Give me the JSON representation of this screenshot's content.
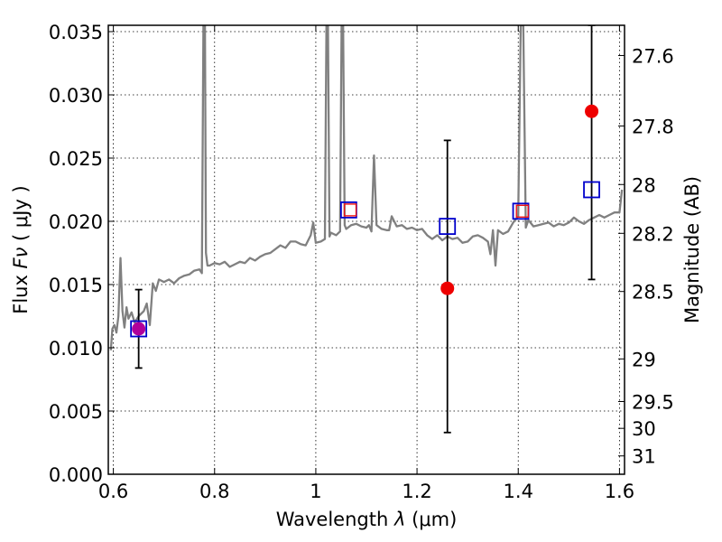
{
  "chart_data": {
    "type": "scatter",
    "x_axis": {
      "label_prefix": "Wavelength  ",
      "label_symbol": "λ",
      "label_suffix": " (μm)",
      "range": [
        0.59,
        1.61
      ],
      "ticks": [
        0.6,
        0.8,
        1.0,
        1.2,
        1.4,
        1.6
      ],
      "tick_labels": [
        "0.6",
        "0.8",
        "1",
        "1.2",
        "1.4",
        "1.6"
      ]
    },
    "y_axis_left": {
      "label_prefix": "Flux  ",
      "label_symbol": "Fν",
      "label_suffix": "  ( μJy )",
      "range": [
        0.0,
        0.0355
      ],
      "ticks": [
        0.0,
        0.005,
        0.01,
        0.015,
        0.02,
        0.025,
        0.03,
        0.035
      ],
      "tick_labels": [
        "0.000",
        "0.005",
        "0.010",
        "0.015",
        "0.020",
        "0.025",
        "0.030",
        "0.035"
      ]
    },
    "y_axis_right": {
      "label": "Magnitude (AB)",
      "tick_labels": [
        "27.6",
        "27.8",
        "28",
        "28.2",
        "28.5",
        "29",
        "29.5",
        "30",
        "31"
      ],
      "tick_flux_values": [
        0.03311,
        0.02754,
        0.02291,
        0.01905,
        0.01445,
        0.00912,
        0.00575,
        0.00363,
        0.00145
      ]
    },
    "grid": true,
    "series": [
      {
        "kind": "spectrum_line",
        "color": "#808080",
        "x": [
          0.595,
          0.598,
          0.602,
          0.606,
          0.61,
          0.614,
          0.618,
          0.622,
          0.626,
          0.63,
          0.636,
          0.642,
          0.65,
          0.66,
          0.666,
          0.672,
          0.678,
          0.684,
          0.69,
          0.7,
          0.71,
          0.72,
          0.73,
          0.74,
          0.75,
          0.76,
          0.77,
          0.775,
          0.778,
          0.781,
          0.783,
          0.786,
          0.79,
          0.8,
          0.81,
          0.82,
          0.83,
          0.84,
          0.85,
          0.86,
          0.87,
          0.88,
          0.89,
          0.9,
          0.91,
          0.92,
          0.93,
          0.94,
          0.95,
          0.96,
          0.97,
          0.98,
          0.99,
          0.995,
          1.0,
          1.01,
          1.018,
          1.021,
          1.024,
          1.027,
          1.03,
          1.04,
          1.048,
          1.051,
          1.054,
          1.057,
          1.06,
          1.07,
          1.08,
          1.09,
          1.1,
          1.105,
          1.11,
          1.115,
          1.12,
          1.13,
          1.14,
          1.145,
          1.15,
          1.16,
          1.17,
          1.18,
          1.19,
          1.2,
          1.21,
          1.22,
          1.23,
          1.24,
          1.25,
          1.26,
          1.27,
          1.28,
          1.29,
          1.3,
          1.31,
          1.32,
          1.33,
          1.34,
          1.345,
          1.35,
          1.355,
          1.36,
          1.37,
          1.38,
          1.39,
          1.4,
          1.405,
          1.41,
          1.415,
          1.42,
          1.43,
          1.44,
          1.45,
          1.46,
          1.47,
          1.48,
          1.49,
          1.5,
          1.51,
          1.52,
          1.53,
          1.54,
          1.55,
          1.56,
          1.57,
          1.58,
          1.59,
          1.6,
          1.605
        ],
        "y": [
          0.0098,
          0.0115,
          0.0118,
          0.0112,
          0.0125,
          0.0171,
          0.0129,
          0.0116,
          0.0132,
          0.0123,
          0.0128,
          0.012,
          0.0125,
          0.0129,
          0.0135,
          0.0118,
          0.0151,
          0.0145,
          0.0154,
          0.0152,
          0.0154,
          0.0151,
          0.0155,
          0.0157,
          0.0158,
          0.0161,
          0.0162,
          0.0159,
          0.0355,
          0.0355,
          0.0175,
          0.0165,
          0.0165,
          0.0167,
          0.0166,
          0.0168,
          0.0164,
          0.0166,
          0.0168,
          0.0167,
          0.0171,
          0.0169,
          0.0172,
          0.0174,
          0.0175,
          0.0178,
          0.0181,
          0.0179,
          0.0184,
          0.0184,
          0.0182,
          0.0181,
          0.0189,
          0.0199,
          0.0183,
          0.0184,
          0.0186,
          0.0355,
          0.0355,
          0.0188,
          0.0191,
          0.0189,
          0.0192,
          0.0355,
          0.0355,
          0.0197,
          0.0194,
          0.0197,
          0.0198,
          0.0196,
          0.0195,
          0.0197,
          0.0192,
          0.0252,
          0.0197,
          0.0194,
          0.0193,
          0.0193,
          0.0204,
          0.0196,
          0.0197,
          0.0194,
          0.0195,
          0.0193,
          0.0194,
          0.0189,
          0.0186,
          0.0189,
          0.0185,
          0.0188,
          0.0186,
          0.0187,
          0.0183,
          0.0184,
          0.0188,
          0.0189,
          0.0187,
          0.0184,
          0.0174,
          0.0193,
          0.0165,
          0.0193,
          0.019,
          0.0192,
          0.0199,
          0.0204,
          0.0355,
          0.0355,
          0.0195,
          0.0201,
          0.0196,
          0.0197,
          0.0198,
          0.0199,
          0.0196,
          0.0198,
          0.0197,
          0.0199,
          0.0203,
          0.02,
          0.0198,
          0.0201,
          0.0203,
          0.0205,
          0.0203,
          0.0205,
          0.0207,
          0.0207,
          0.0225
        ]
      },
      {
        "kind": "open_squares",
        "color": "#0000cc",
        "x": [
          0.65,
          1.065,
          1.26,
          1.405,
          1.545
        ],
        "y": [
          0.0115,
          0.0209,
          0.0196,
          0.0208,
          0.0225
        ]
      },
      {
        "kind": "small_open_squares",
        "color": "#ee1111",
        "x": [
          1.068,
          1.408
        ],
        "y": [
          0.0209,
          0.0208
        ]
      },
      {
        "kind": "filled_circles",
        "color": "#ee0000",
        "x": [
          1.26,
          1.545
        ],
        "y": [
          0.0147,
          0.0287
        ]
      },
      {
        "kind": "filled_circles",
        "color": "#b0009a",
        "x": [
          0.65
        ],
        "y": [
          0.0115
        ]
      },
      {
        "kind": "error_bars",
        "color": "#000000",
        "x": [
          0.65,
          1.26,
          1.545
        ],
        "y_low": [
          0.0084,
          0.0033,
          0.0154
        ],
        "y_high": [
          0.0146,
          0.0264,
          0.0355
        ]
      }
    ]
  }
}
